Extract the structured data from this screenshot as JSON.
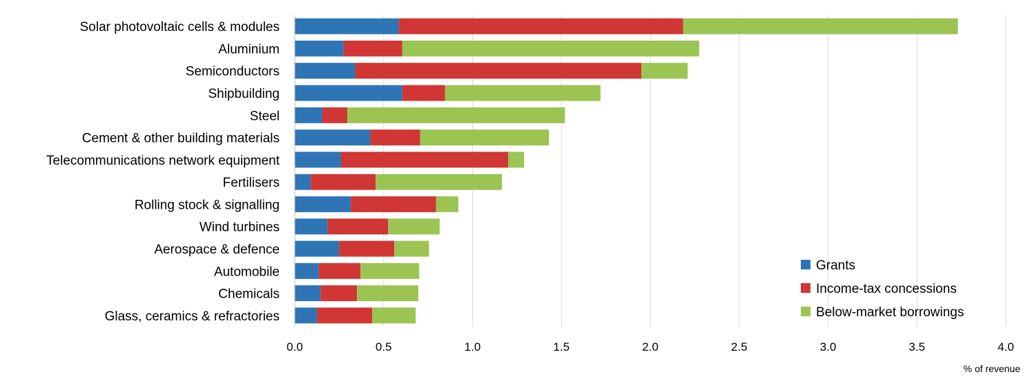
{
  "chart_data": {
    "type": "bar",
    "orientation": "horizontal",
    "stacked": true,
    "categories": [
      "Solar photovoltaic cells & modules",
      "Aluminium",
      "Semiconductors",
      "Shipbuilding",
      "Steel",
      "Cement & other building materials",
      "Telecommunications network equipment",
      "Fertilisers",
      "Rolling stock & signalling",
      "Wind turbines",
      "Aerospace & defence",
      "Automobile",
      "Chemicals",
      "Glass, ceramics & refractories"
    ],
    "series": [
      {
        "name": "Grants",
        "color": "#2e75b6",
        "values": [
          0.585,
          0.275,
          0.34,
          0.605,
          0.155,
          0.425,
          0.26,
          0.09,
          0.315,
          0.185,
          0.25,
          0.135,
          0.145,
          0.125
        ]
      },
      {
        "name": "Income-tax concessions",
        "color": "#d03634",
        "values": [
          1.6,
          0.33,
          1.61,
          0.24,
          0.14,
          0.28,
          0.94,
          0.365,
          0.48,
          0.34,
          0.31,
          0.235,
          0.205,
          0.31
        ]
      },
      {
        "name": "Below-market borrowings",
        "color": "#9bc453",
        "values": [
          1.545,
          1.67,
          0.26,
          0.875,
          1.225,
          0.725,
          0.09,
          0.71,
          0.125,
          0.29,
          0.195,
          0.33,
          0.345,
          0.245
        ]
      }
    ],
    "xlabel": "% of revenue",
    "xlim": [
      0,
      4.0
    ],
    "xticks": [
      "0.0",
      "0.5",
      "1.0",
      "1.5",
      "2.0",
      "2.5",
      "3.0",
      "3.5",
      "4.0"
    ],
    "grid": "vertical",
    "legend": "bottom-right"
  }
}
